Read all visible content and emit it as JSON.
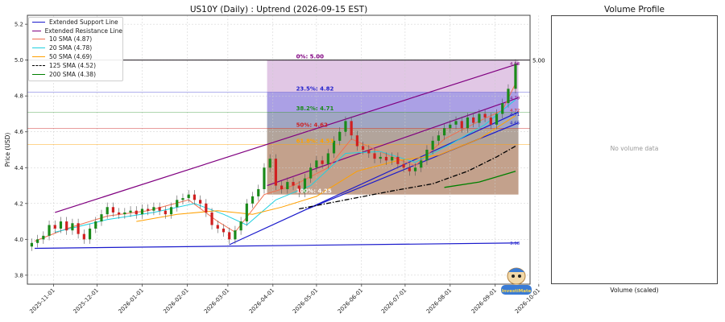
{
  "chart_data": [
    {
      "type": "candlestick",
      "title": "US10Y (Daily) : Uptrend (2026-09-15 EST)",
      "ylabel": "Price (USD)",
      "xlabel": "",
      "ylim": [
        3.75,
        5.25
      ],
      "xlim": [
        "2025-10-14",
        "2026-09-25"
      ],
      "grid": true,
      "y_ticks": [
        "3.8",
        "4.0",
        "4.2",
        "4.4",
        "4.6",
        "4.8",
        "5.0",
        "5.2"
      ],
      "x_ticks": [
        "2025-11-01",
        "2025-12-01",
        "2026-01-01",
        "2026-02-01",
        "2026-03-01",
        "2026-04-01",
        "2026-05-01",
        "2026-06-01",
        "2026-07-01",
        "2026-08-01",
        "2026-09-01",
        "2026-10-01"
      ],
      "legend_position": "top-left",
      "legend": [
        {
          "label": "Extended Support Line",
          "color": "#1a1acc",
          "style": "solid"
        },
        {
          "label": "Extended Resistance Line",
          "color": "#800080",
          "style": "solid"
        },
        {
          "label": "10 SMA (4.87)",
          "color": "#f07050",
          "style": "solid"
        },
        {
          "label": "20 SMA (4.78)",
          "color": "#20d0e0",
          "style": "solid"
        },
        {
          "label": "50 SMA (4.69)",
          "color": "#ffa000",
          "style": "solid"
        },
        {
          "label": "125 SMA (4.52)",
          "color": "#000000",
          "style": "dashdot"
        },
        {
          "label": "200 SMA (4.38)",
          "color": "#008000",
          "style": "solid"
        }
      ],
      "candles_close": [
        [
          "2025-10-17",
          3.98
        ],
        [
          "2025-10-21",
          4.0
        ],
        [
          "2025-10-25",
          4.02
        ],
        [
          "2025-10-29",
          4.08
        ],
        [
          "2025-11-02",
          4.06
        ],
        [
          "2025-11-06",
          4.1
        ],
        [
          "2025-11-10",
          4.05
        ],
        [
          "2025-11-14",
          4.09
        ],
        [
          "2025-11-18",
          4.03
        ],
        [
          "2025-11-22",
          4.0
        ],
        [
          "2025-11-26",
          4.06
        ],
        [
          "2025-11-30",
          4.1
        ],
        [
          "2025-12-04",
          4.14
        ],
        [
          "2025-12-08",
          4.18
        ],
        [
          "2025-12-12",
          4.15
        ],
        [
          "2025-12-16",
          4.14
        ],
        [
          "2025-12-20",
          4.15
        ],
        [
          "2025-12-24",
          4.16
        ],
        [
          "2025-12-28",
          4.14
        ],
        [
          "2026-01-01",
          4.17
        ],
        [
          "2026-01-05",
          4.16
        ],
        [
          "2026-01-09",
          4.18
        ],
        [
          "2026-01-13",
          4.16
        ],
        [
          "2026-01-17",
          4.14
        ],
        [
          "2026-01-21",
          4.18
        ],
        [
          "2026-01-25",
          4.22
        ],
        [
          "2026-01-29",
          4.23
        ],
        [
          "2026-02-02",
          4.25
        ],
        [
          "2026-02-06",
          4.22
        ],
        [
          "2026-02-10",
          4.2
        ],
        [
          "2026-02-14",
          4.15
        ],
        [
          "2026-02-18",
          4.08
        ],
        [
          "2026-02-22",
          4.06
        ],
        [
          "2026-02-26",
          4.04
        ],
        [
          "2026-03-02",
          4.0
        ],
        [
          "2026-03-06",
          4.05
        ],
        [
          "2026-03-10",
          4.1
        ],
        [
          "2026-03-14",
          4.2
        ],
        [
          "2026-03-18",
          4.24
        ],
        [
          "2026-03-22",
          4.28
        ],
        [
          "2026-03-26",
          4.4
        ],
        [
          "2026-03-30",
          4.45
        ],
        [
          "2026-04-03",
          4.3
        ],
        [
          "2026-04-07",
          4.28
        ],
        [
          "2026-04-11",
          4.32
        ],
        [
          "2026-04-15",
          4.3
        ],
        [
          "2026-04-19",
          4.26
        ],
        [
          "2026-04-23",
          4.34
        ],
        [
          "2026-04-27",
          4.4
        ],
        [
          "2026-05-01",
          4.44
        ],
        [
          "2026-05-05",
          4.42
        ],
        [
          "2026-05-09",
          4.48
        ],
        [
          "2026-05-13",
          4.55
        ],
        [
          "2026-05-17",
          4.6
        ],
        [
          "2026-05-21",
          4.66
        ],
        [
          "2026-05-25",
          4.58
        ],
        [
          "2026-05-29",
          4.52
        ],
        [
          "2026-06-02",
          4.5
        ],
        [
          "2026-06-06",
          4.48
        ],
        [
          "2026-06-10",
          4.45
        ],
        [
          "2026-06-14",
          4.46
        ],
        [
          "2026-06-18",
          4.44
        ],
        [
          "2026-06-22",
          4.46
        ],
        [
          "2026-06-26",
          4.42
        ],
        [
          "2026-06-30",
          4.4
        ],
        [
          "2026-07-04",
          4.38
        ],
        [
          "2026-07-08",
          4.4
        ],
        [
          "2026-07-12",
          4.44
        ],
        [
          "2026-07-16",
          4.5
        ],
        [
          "2026-07-20",
          4.55
        ],
        [
          "2026-07-24",
          4.58
        ],
        [
          "2026-07-28",
          4.62
        ],
        [
          "2026-08-01",
          4.64
        ],
        [
          "2026-08-05",
          4.66
        ],
        [
          "2026-08-09",
          4.62
        ],
        [
          "2026-08-13",
          4.68
        ],
        [
          "2026-08-17",
          4.65
        ],
        [
          "2026-08-21",
          4.7
        ],
        [
          "2026-08-25",
          4.68
        ],
        [
          "2026-08-29",
          4.64
        ],
        [
          "2026-09-02",
          4.7
        ],
        [
          "2026-09-06",
          4.76
        ],
        [
          "2026-09-10",
          4.84
        ],
        [
          "2026-09-15",
          4.98
        ]
      ],
      "fibonacci_levels": [
        {
          "label": "0%: 5.00",
          "value": 5.0,
          "color": "#800080"
        },
        {
          "label": "23.5%: 4.82",
          "value": 4.82,
          "color": "#2222cc"
        },
        {
          "label": "38.2%: 4.71",
          "value": 4.71,
          "color": "#1a8a1a"
        },
        {
          "label": "50%: 4.62",
          "value": 4.62,
          "color": "#cc2222"
        },
        {
          "label": "61.8%: 4.53",
          "value": 4.53,
          "color": "#ffa000"
        },
        {
          "label": "100%: 4.25",
          "value": 4.25,
          "color": "#ffffff"
        }
      ],
      "fib_zone": {
        "x_start": "2026-03-28",
        "x_end": "2026-09-17",
        "top": 5.0,
        "bottom": 4.25
      },
      "horizontal_line": {
        "value": 5.0,
        "label": "5.00"
      },
      "support_lines": [
        {
          "x": [
            "2025-10-19",
            "2026-09-17"
          ],
          "y": [
            3.95,
            3.98
          ]
        },
        {
          "x": [
            "2026-03-02",
            "2026-09-17"
          ],
          "y": [
            3.97,
            4.71
          ]
        },
        {
          "x": [
            "2026-04-25",
            "2026-09-17"
          ],
          "y": [
            4.17,
            4.65
          ]
        }
      ],
      "resistance_lines": [
        {
          "x": [
            "2025-11-02",
            "2026-09-17"
          ],
          "y": [
            4.15,
            4.98
          ]
        },
        {
          "x": [
            "2026-03-28",
            "2026-09-17"
          ],
          "y": [
            4.3,
            4.79
          ]
        }
      ],
      "sma": [
        {
          "name": "10 SMA",
          "points": [
            [
              "2025-10-19",
              3.99
            ],
            [
              "2025-11-10",
              4.06
            ],
            [
              "2025-12-08",
              4.13
            ],
            [
              "2026-01-05",
              4.16
            ],
            [
              "2026-02-02",
              4.22
            ],
            [
              "2026-02-22",
              4.1
            ],
            [
              "2026-03-06",
              4.04
            ],
            [
              "2026-03-26",
              4.25
            ],
            [
              "2026-04-15",
              4.3
            ],
            [
              "2026-05-09",
              4.4
            ],
            [
              "2026-05-25",
              4.56
            ],
            [
              "2026-06-22",
              4.46
            ],
            [
              "2026-07-08",
              4.41
            ],
            [
              "2026-07-28",
              4.56
            ],
            [
              "2026-08-21",
              4.66
            ],
            [
              "2026-09-06",
              4.72
            ],
            [
              "2026-09-15",
              4.87
            ]
          ]
        },
        {
          "name": "20 SMA",
          "points": [
            [
              "2025-11-02",
              4.04
            ],
            [
              "2025-12-08",
              4.11
            ],
            [
              "2026-01-09",
              4.15
            ],
            [
              "2026-02-06",
              4.2
            ],
            [
              "2026-02-26",
              4.14
            ],
            [
              "2026-03-14",
              4.08
            ],
            [
              "2026-04-03",
              4.22
            ],
            [
              "2026-04-27",
              4.3
            ],
            [
              "2026-05-21",
              4.48
            ],
            [
              "2026-06-14",
              4.49
            ],
            [
              "2026-07-08",
              4.43
            ],
            [
              "2026-08-01",
              4.53
            ],
            [
              "2026-08-25",
              4.64
            ],
            [
              "2026-09-15",
              4.78
            ]
          ]
        },
        {
          "name": "50 SMA",
          "points": [
            [
              "2025-12-28",
              4.1
            ],
            [
              "2026-01-25",
              4.14
            ],
            [
              "2026-02-22",
              4.16
            ],
            [
              "2026-03-18",
              4.14
            ],
            [
              "2026-04-07",
              4.18
            ],
            [
              "2026-05-01",
              4.24
            ],
            [
              "2026-05-29",
              4.38
            ],
            [
              "2026-06-26",
              4.44
            ],
            [
              "2026-07-24",
              4.47
            ],
            [
              "2026-08-21",
              4.56
            ],
            [
              "2026-09-15",
              4.69
            ]
          ]
        },
        {
          "name": "125 SMA",
          "points": [
            [
              "2026-04-19",
              4.17
            ],
            [
              "2026-05-21",
              4.22
            ],
            [
              "2026-06-22",
              4.27
            ],
            [
              "2026-07-20",
              4.31
            ],
            [
              "2026-08-13",
              4.38
            ],
            [
              "2026-09-02",
              4.46
            ],
            [
              "2026-09-15",
              4.52
            ]
          ]
        },
        {
          "name": "200 SMA",
          "points": [
            [
              "2026-07-28",
              4.29
            ],
            [
              "2026-08-21",
              4.32
            ],
            [
              "2026-09-15",
              4.38
            ]
          ]
        }
      ],
      "end_labels": [
        {
          "text": "4.98",
          "value": 4.98,
          "color": "#800080"
        },
        {
          "text": "4.79",
          "value": 4.79,
          "color": "#800080"
        },
        {
          "text": "4.72",
          "value": 4.72,
          "color": "#cc2222"
        },
        {
          "text": "4.71",
          "value": 4.71,
          "color": "#1a1acc"
        },
        {
          "text": "4.65",
          "value": 4.65,
          "color": "#1a1acc"
        },
        {
          "text": "3.98",
          "value": 3.98,
          "color": "#1a1acc"
        }
      ]
    },
    {
      "type": "bar",
      "title": "Volume Profile",
      "xlabel": "Volume (scaled)",
      "empty_message": "No volume data"
    }
  ],
  "logo": {
    "text": "InvestiMate",
    "icon": "mascot-logo"
  }
}
